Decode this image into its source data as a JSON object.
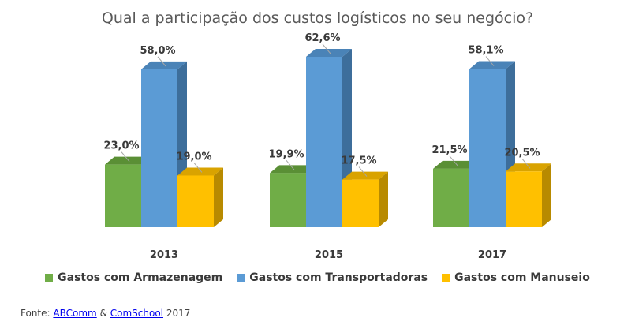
{
  "chart_data": {
    "type": "bar",
    "title": "Qual a participação dos custos logísticos no seu negócio?",
    "categories": [
      "2013",
      "2015",
      "2017"
    ],
    "series": [
      {
        "name": "Gastos com Armazenagem",
        "values": [
          23.0,
          19.9,
          21.5
        ],
        "labels": [
          "23,0%",
          "19,9%",
          "21,5%"
        ],
        "color": "#70ad47",
        "top": "#5a8f35",
        "side": "#4e7c2d"
      },
      {
        "name": "Gastos com Transportadoras",
        "values": [
          58.0,
          62.6,
          58.1
        ],
        "labels": [
          "58,0%",
          "62,6%",
          "58,1%"
        ],
        "color": "#5b9bd5",
        "top": "#4a83b7",
        "side": "#3d6e9b"
      },
      {
        "name": "Gastos com Manuseio",
        "values": [
          19.0,
          17.5,
          20.5
        ],
        "labels": [
          "19,0%",
          "17,5%",
          "20,5%"
        ],
        "color": "#ffc000",
        "top": "#d9a300",
        "side": "#b88a00"
      }
    ],
    "ylim": [
      0,
      70
    ],
    "xlabel": "",
    "ylabel": "",
    "legend": "bottom"
  },
  "source": {
    "prefix": "Fonte:",
    "link1": "ABComm",
    "amp": "&",
    "link2": "ComSchool",
    "year": "2017"
  }
}
